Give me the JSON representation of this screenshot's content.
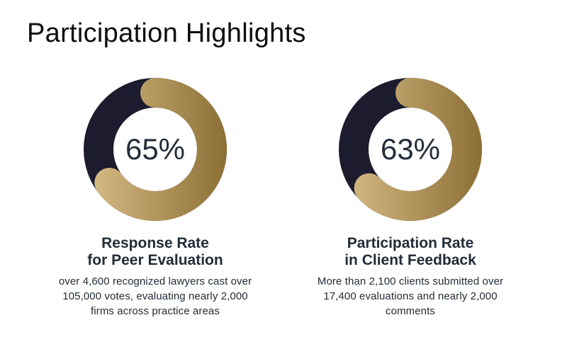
{
  "page": {
    "title": "Participation Highlights",
    "background": "#ffffff"
  },
  "colors": {
    "title_text": "#0e0e0e",
    "body_text": "#222c37",
    "percent_text": "#242e3a",
    "ring_remainder_navy": "#1c1c2e",
    "ring_gold_light": "#d9be88",
    "ring_gold_dark": "#8c6f35"
  },
  "chart_data": [
    {
      "type": "donut",
      "percent": 65,
      "percent_label": "65%",
      "segments": [
        {
          "name": "response-rate",
          "value": 65,
          "color": "gold gradient #d9be88 to #8c6f35"
        },
        {
          "name": "remainder",
          "value": 35,
          "color": "#1c1c2e"
        }
      ],
      "heading_lines": [
        "Response Rate",
        "for Peer Evaluation"
      ],
      "description_lines": [
        "over 4,600 recognized lawyers cast over",
        "105,000 votes, evaluating nearly 2,000",
        "firms across practice areas"
      ]
    },
    {
      "type": "donut",
      "percent": 63,
      "percent_label": "63%",
      "segments": [
        {
          "name": "participation-rate",
          "value": 63,
          "color": "gold gradient #d9be88 to #8c6f35"
        },
        {
          "name": "remainder",
          "value": 37,
          "color": "#1c1c2e"
        }
      ],
      "heading_lines": [
        "Participation Rate",
        "in Client Feedback"
      ],
      "description_lines": [
        "More than 2,100 clients submitted over",
        "17,400 evaluations and nearly 2,000",
        "comments"
      ]
    }
  ]
}
